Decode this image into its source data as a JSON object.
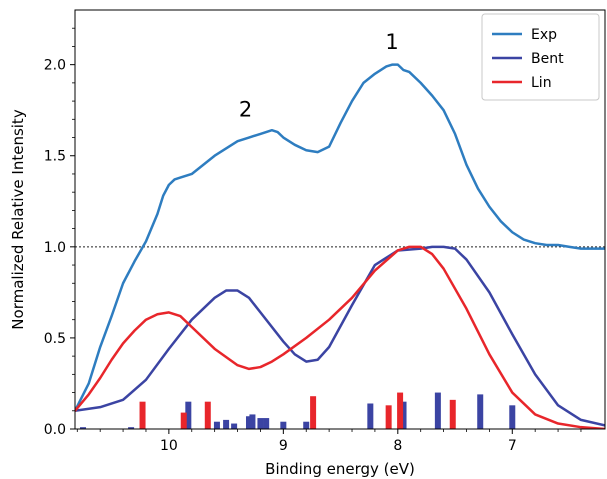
{
  "chart_data": {
    "type": "line",
    "xlabel": "Binding energy (eV)",
    "ylabel": "Normalized Relative Intensity",
    "xlim": [
      10.82,
      6.19
    ],
    "ylim": [
      0,
      2.3
    ],
    "x_reversed": true,
    "xticks": [
      10,
      9,
      8,
      7
    ],
    "yticks": [
      0.0,
      0.5,
      1.0,
      1.5,
      2.0
    ],
    "ytick_labels": [
      "0.0",
      "0.5",
      "1.0",
      "1.5",
      "2.0"
    ],
    "reference_line": {
      "y": 1.0,
      "style": "dotted"
    },
    "annotations": [
      {
        "text": "1",
        "x": 8.05,
        "y": 2.13
      },
      {
        "text": "2",
        "x": 9.33,
        "y": 1.76
      }
    ],
    "legend": {
      "position": "top-right"
    },
    "series": [
      {
        "name": "Exp",
        "color": "#2e7dc0",
        "x": [
          10.82,
          10.7,
          10.6,
          10.5,
          10.4,
          10.3,
          10.2,
          10.1,
          10.05,
          10.0,
          9.95,
          9.9,
          9.8,
          9.7,
          9.6,
          9.5,
          9.4,
          9.3,
          9.2,
          9.1,
          9.05,
          9.0,
          8.9,
          8.8,
          8.7,
          8.6,
          8.5,
          8.4,
          8.3,
          8.2,
          8.1,
          8.05,
          8.0,
          7.95,
          7.9,
          7.8,
          7.7,
          7.6,
          7.5,
          7.4,
          7.3,
          7.2,
          7.1,
          7.0,
          6.9,
          6.8,
          6.7,
          6.6,
          6.5,
          6.4,
          6.3,
          6.19
        ],
        "values": [
          0.1,
          0.25,
          0.45,
          0.62,
          0.8,
          0.92,
          1.03,
          1.18,
          1.28,
          1.34,
          1.37,
          1.38,
          1.4,
          1.45,
          1.5,
          1.54,
          1.58,
          1.6,
          1.62,
          1.64,
          1.63,
          1.6,
          1.56,
          1.53,
          1.52,
          1.55,
          1.68,
          1.8,
          1.9,
          1.95,
          1.99,
          2.0,
          2.0,
          1.97,
          1.96,
          1.9,
          1.83,
          1.75,
          1.62,
          1.45,
          1.32,
          1.22,
          1.14,
          1.08,
          1.04,
          1.02,
          1.01,
          1.01,
          1.0,
          0.99,
          0.99,
          0.99
        ]
      },
      {
        "name": "Bent",
        "color": "#3b44a3",
        "x": [
          10.82,
          10.6,
          10.4,
          10.2,
          10.0,
          9.8,
          9.6,
          9.5,
          9.4,
          9.3,
          9.2,
          9.0,
          8.9,
          8.8,
          8.7,
          8.6,
          8.4,
          8.2,
          8.0,
          7.8,
          7.7,
          7.6,
          7.5,
          7.4,
          7.2,
          7.0,
          6.8,
          6.6,
          6.4,
          6.19
        ],
        "values": [
          0.1,
          0.12,
          0.16,
          0.27,
          0.44,
          0.6,
          0.72,
          0.76,
          0.76,
          0.72,
          0.64,
          0.48,
          0.41,
          0.37,
          0.38,
          0.45,
          0.68,
          0.9,
          0.98,
          0.99,
          1.0,
          1.0,
          0.99,
          0.93,
          0.75,
          0.52,
          0.3,
          0.13,
          0.05,
          0.02
        ]
      },
      {
        "name": "Lin",
        "color": "#e8262b",
        "x": [
          10.82,
          10.7,
          10.6,
          10.5,
          10.4,
          10.3,
          10.2,
          10.1,
          10.0,
          9.9,
          9.8,
          9.6,
          9.4,
          9.3,
          9.2,
          9.1,
          9.0,
          8.8,
          8.6,
          8.4,
          8.2,
          8.0,
          7.9,
          7.85,
          7.8,
          7.7,
          7.6,
          7.4,
          7.2,
          7.0,
          6.8,
          6.6,
          6.4,
          6.19
        ],
        "values": [
          0.1,
          0.19,
          0.28,
          0.38,
          0.47,
          0.54,
          0.6,
          0.63,
          0.64,
          0.62,
          0.56,
          0.44,
          0.35,
          0.33,
          0.34,
          0.37,
          0.41,
          0.5,
          0.6,
          0.72,
          0.87,
          0.98,
          1.0,
          1.0,
          1.0,
          0.96,
          0.88,
          0.66,
          0.41,
          0.2,
          0.08,
          0.03,
          0.01,
          0.0
        ]
      }
    ],
    "stick_series": [
      {
        "legend_ref": "Bent",
        "color": "#3b44a3",
        "x": [
          10.75,
          10.33,
          9.83,
          9.58,
          9.5,
          9.43,
          9.3,
          9.27,
          9.2,
          9.15,
          9.0,
          8.8,
          8.24,
          7.95,
          7.65,
          7.28,
          7.0
        ],
        "values": [
          0.01,
          0.01,
          0.15,
          0.04,
          0.05,
          0.03,
          0.07,
          0.08,
          0.06,
          0.06,
          0.04,
          0.04,
          0.14,
          0.15,
          0.2,
          0.19,
          0.13
        ]
      },
      {
        "legend_ref": "Lin",
        "color": "#e8262b",
        "x": [
          10.23,
          9.87,
          9.66,
          8.74,
          8.08,
          7.98,
          7.52
        ],
        "values": [
          0.15,
          0.09,
          0.15,
          0.18,
          0.13,
          0.2,
          0.16
        ]
      }
    ]
  }
}
